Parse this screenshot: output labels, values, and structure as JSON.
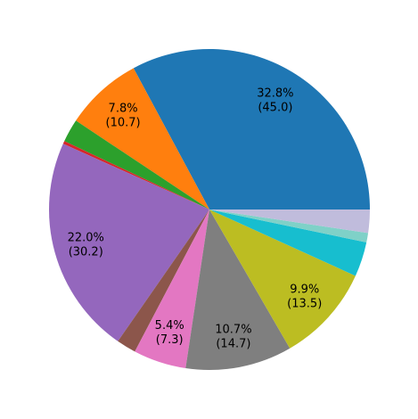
{
  "chart_data": {
    "type": "pie",
    "start_angle_deg": 0,
    "direction": "counterclockwise",
    "slices": [
      {
        "value": 45.0,
        "percent": 32.8,
        "color": "#1f77b4",
        "label_pct": "32.8%",
        "label_val": "(45.0)"
      },
      {
        "value": 10.7,
        "percent": 7.8,
        "color": "#ff7f0e",
        "label_pct": "7.8%",
        "label_val": "(10.7)"
      },
      {
        "value": 3.2,
        "percent": 2.3,
        "color": "#2ca02c",
        "label_pct": "",
        "label_val": ""
      },
      {
        "value": 0.4,
        "percent": 0.3,
        "color": "#d62728",
        "label_pct": "",
        "label_val": ""
      },
      {
        "value": 30.2,
        "percent": 22.0,
        "color": "#9467bd",
        "label_pct": "22.0%",
        "label_val": "(30.2)"
      },
      {
        "value": 2.7,
        "percent": 2.0,
        "color": "#8c564b",
        "label_pct": "",
        "label_val": ""
      },
      {
        "value": 7.3,
        "percent": 5.4,
        "color": "#e377c2",
        "label_pct": "5.4%",
        "label_val": "(7.3)"
      },
      {
        "value": 14.7,
        "percent": 10.7,
        "color": "#7f7f7f",
        "label_pct": "10.7%",
        "label_val": "(14.7)"
      },
      {
        "value": 13.5,
        "percent": 9.9,
        "color": "#bcbd22",
        "label_pct": "9.9%",
        "label_val": "(13.5)"
      },
      {
        "value": 4.8,
        "percent": 3.5,
        "color": "#17becf",
        "label_pct": "",
        "label_val": ""
      },
      {
        "value": 1.3,
        "percent": 1.0,
        "color": "#7fd1c8",
        "label_pct": "",
        "label_val": ""
      },
      {
        "value": 3.2,
        "percent": 2.3,
        "color": "#c0bcdc",
        "label_pct": "",
        "label_val": ""
      }
    ]
  }
}
